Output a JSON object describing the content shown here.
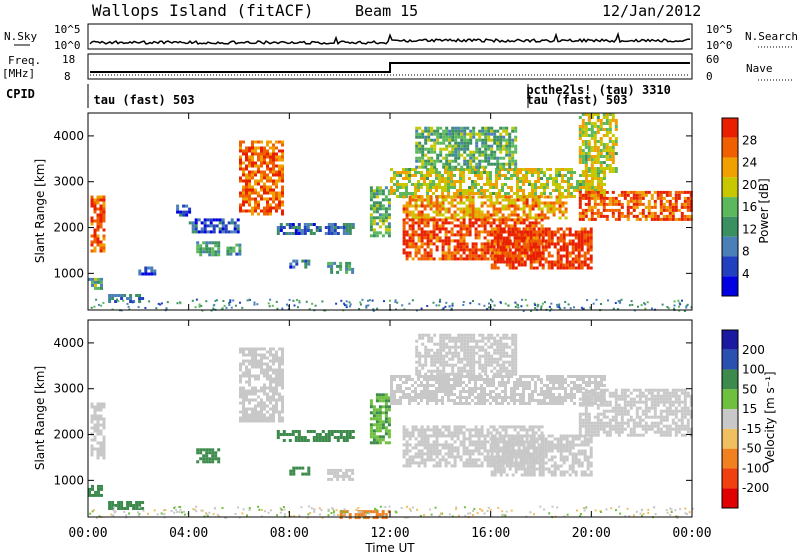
{
  "header": {
    "station": "Wallops Island (fitACF)",
    "beam": "Beam 15",
    "date": "12/Jan/2012"
  },
  "side_labels": {
    "nsky": "N.Sky",
    "nsearch": "N.Search",
    "freq": "Freq.",
    "freq_unit": "[MHz]",
    "nave": "Nave",
    "cpid": "CPID"
  },
  "small_axes": {
    "nsky_ticks": [
      "10^5",
      "10^0"
    ],
    "nsearch_ticks": [
      "10^5",
      "10^0"
    ],
    "freq_ticks": [
      "18",
      "8"
    ],
    "nave_ticks": [
      "60",
      "0"
    ]
  },
  "cpid_labels": [
    {
      "text": "tau (fast) 503",
      "time_h": 0.1,
      "row": 1
    },
    {
      "text": "pcthe2ls! (tau) 3310",
      "time_h": 17.3,
      "row": 0
    },
    {
      "text": "tau (fast) 503",
      "time_h": 17.3,
      "row": 1
    }
  ],
  "chart_data": [
    {
      "type": "heatmap",
      "name": "power",
      "ylabel": "Slant Range [km]",
      "xlabel": "Time UT",
      "xlim": [
        0,
        24
      ],
      "ylim": [
        200,
        4500
      ],
      "xticks": [
        "00:00",
        "04:00",
        "08:00",
        "12:00",
        "16:00",
        "20:00",
        "00:00"
      ],
      "yticks": [
        1000,
        2000,
        3000,
        4000
      ],
      "colorbar": {
        "label": "Power [dB]",
        "ticks": [
          "28",
          "24",
          "20",
          "16",
          "12",
          "8",
          "4"
        ],
        "range": [
          0,
          30
        ]
      },
      "regions": [
        {
          "t": [
            0.1,
            0.6
          ],
          "r": [
            1500,
            2700
          ],
          "v": 26
        },
        {
          "t": [
            0.0,
            0.5
          ],
          "r": [
            650,
            900
          ],
          "v": 12
        },
        {
          "t": [
            0.8,
            2.2
          ],
          "r": [
            400,
            550
          ],
          "v": 8
        },
        {
          "t": [
            2.0,
            2.6
          ],
          "r": [
            1000,
            1150
          ],
          "v": 6
        },
        {
          "t": [
            3.5,
            4.0
          ],
          "r": [
            2300,
            2500
          ],
          "v": 6
        },
        {
          "t": [
            4.0,
            6.0
          ],
          "r": [
            1900,
            2200
          ],
          "v": 6
        },
        {
          "t": [
            4.3,
            5.2
          ],
          "r": [
            1400,
            1700
          ],
          "v": 12
        },
        {
          "t": [
            5.5,
            6.0
          ],
          "r": [
            1450,
            1650
          ],
          "v": 10
        },
        {
          "t": [
            6.0,
            7.7
          ],
          "r": [
            2300,
            3900
          ],
          "v": 25
        },
        {
          "t": [
            7.5,
            10.5
          ],
          "r": [
            1900,
            2100
          ],
          "v": 8
        },
        {
          "t": [
            8.0,
            8.8
          ],
          "r": [
            1150,
            1300
          ],
          "v": 8
        },
        {
          "t": [
            9.5,
            10.5
          ],
          "r": [
            1050,
            1250
          ],
          "v": 12
        },
        {
          "t": [
            11.2,
            12.0
          ],
          "r": [
            1800,
            2900
          ],
          "v": 14
        },
        {
          "t": [
            12.0,
            20.5
          ],
          "r": [
            2700,
            3300
          ],
          "v": 18
        },
        {
          "t": [
            12.5,
            19.0
          ],
          "r": [
            2200,
            2700
          ],
          "v": 22
        },
        {
          "t": [
            12.5,
            18.0
          ],
          "r": [
            1300,
            2200
          ],
          "v": 27
        },
        {
          "t": [
            16.0,
            20.0
          ],
          "r": [
            1100,
            2000
          ],
          "v": 28
        },
        {
          "t": [
            19.5,
            24.0
          ],
          "r": [
            2200,
            2800
          ],
          "v": 26
        },
        {
          "t": [
            13.0,
            17.0
          ],
          "r": [
            3300,
            4200
          ],
          "v": 14
        },
        {
          "t": [
            19.5,
            21.0
          ],
          "r": [
            3200,
            4500
          ],
          "v": 18
        }
      ]
    },
    {
      "type": "heatmap",
      "name": "velocity",
      "ylabel": "Slant Range [km]",
      "xlabel": "Time UT",
      "xlim": [
        0,
        24
      ],
      "ylim": [
        200,
        4500
      ],
      "xticks": [
        "00:00",
        "04:00",
        "08:00",
        "12:00",
        "16:00",
        "20:00",
        "00:00"
      ],
      "yticks": [
        1000,
        2000,
        3000,
        4000
      ],
      "colorbar": {
        "label": "Velocity [m s⁻¹]",
        "ticks": [
          "200",
          "100",
          "50",
          "15",
          "-15",
          "-50",
          "-100",
          "-200"
        ],
        "range": [
          -250,
          250
        ]
      },
      "regions": [
        {
          "t": [
            0.1,
            0.6
          ],
          "r": [
            1500,
            2700
          ],
          "v": 0
        },
        {
          "t": [
            0.0,
            0.5
          ],
          "r": [
            650,
            900
          ],
          "v": 40
        },
        {
          "t": [
            0.8,
            2.2
          ],
          "r": [
            400,
            550
          ],
          "v": 60
        },
        {
          "t": [
            4.3,
            5.2
          ],
          "r": [
            1400,
            1700
          ],
          "v": 60
        },
        {
          "t": [
            6.0,
            7.7
          ],
          "r": [
            2300,
            3900
          ],
          "v": 0
        },
        {
          "t": [
            7.5,
            10.5
          ],
          "r": [
            1900,
            2100
          ],
          "v": 40
        },
        {
          "t": [
            8.0,
            8.8
          ],
          "r": [
            1150,
            1300
          ],
          "v": 50
        },
        {
          "t": [
            9.5,
            10.5
          ],
          "r": [
            1050,
            1250
          ],
          "v": 0
        },
        {
          "t": [
            11.2,
            12.0
          ],
          "r": [
            1800,
            2900
          ],
          "v": 30
        },
        {
          "t": [
            12.0,
            20.5
          ],
          "r": [
            2700,
            3300
          ],
          "v": 0
        },
        {
          "t": [
            12.5,
            18.0
          ],
          "r": [
            1300,
            2200
          ],
          "v": 0
        },
        {
          "t": [
            16.0,
            20.0
          ],
          "r": [
            1100,
            2000
          ],
          "v": 0
        },
        {
          "t": [
            19.5,
            24.0
          ],
          "r": [
            2000,
            3000
          ],
          "v": 0
        },
        {
          "t": [
            13.0,
            17.0
          ],
          "r": [
            3300,
            4200
          ],
          "v": 10
        },
        {
          "t": [
            10.0,
            12.0
          ],
          "r": [
            200,
            350
          ],
          "v": -40
        }
      ]
    }
  ],
  "colors": {
    "power": [
      "#0000e0",
      "#2040c0",
      "#4a7fb8",
      "#3a9060",
      "#5cb85c",
      "#c8c800",
      "#f0a000",
      "#f06000",
      "#e82000"
    ],
    "velocity_pos": [
      "#1a1aa0",
      "#2a50b0",
      "#3c8a4c",
      "#70c040"
    ],
    "velocity_zero": "#c8c8c8",
    "velocity_neg": [
      "#f0c060",
      "#f08020",
      "#f04010",
      "#e00000"
    ]
  }
}
